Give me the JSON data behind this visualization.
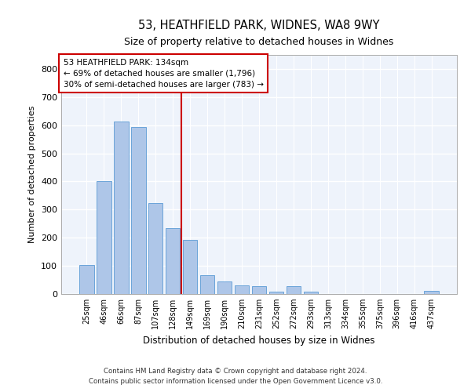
{
  "title_line1": "53, HEATHFIELD PARK, WIDNES, WA8 9WY",
  "title_line2": "Size of property relative to detached houses in Widnes",
  "xlabel": "Distribution of detached houses by size in Widnes",
  "ylabel": "Number of detached properties",
  "footer_line1": "Contains HM Land Registry data © Crown copyright and database right 2024.",
  "footer_line2": "Contains public sector information licensed under the Open Government Licence v3.0.",
  "annotation_line1": "53 HEATHFIELD PARK: 134sqm",
  "annotation_line2": "← 69% of detached houses are smaller (1,796)",
  "annotation_line3": "30% of semi-detached houses are larger (783) →",
  "bar_labels": [
    "25sqm",
    "46sqm",
    "66sqm",
    "87sqm",
    "107sqm",
    "128sqm",
    "149sqm",
    "169sqm",
    "190sqm",
    "210sqm",
    "231sqm",
    "252sqm",
    "272sqm",
    "293sqm",
    "313sqm",
    "334sqm",
    "355sqm",
    "375sqm",
    "396sqm",
    "416sqm",
    "437sqm"
  ],
  "bar_values": [
    103,
    400,
    614,
    594,
    323,
    235,
    193,
    68,
    45,
    30,
    27,
    8,
    28,
    8,
    0,
    0,
    0,
    0,
    0,
    0,
    10
  ],
  "bar_color": "#aec6e8",
  "bar_edge_color": "#5b9bd5",
  "bg_color": "#eef3fb",
  "grid_color": "#ffffff",
  "vline_x": 6.0,
  "vline_color": "#cc0000",
  "annotation_box_color": "#cc0000",
  "ylim": [
    0,
    850
  ],
  "yticks": [
    0,
    100,
    200,
    300,
    400,
    500,
    600,
    700,
    800
  ]
}
